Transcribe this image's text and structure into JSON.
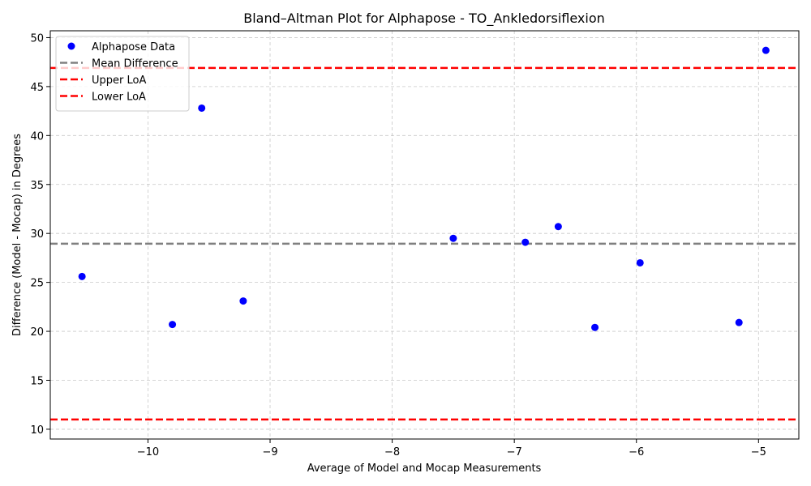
{
  "chart_data": {
    "type": "scatter",
    "title": "Bland–Altman Plot for Alphapose - TO_Ankledorsiflexion",
    "xlabel": "Average of Model and Mocap Measurements",
    "ylabel": "Difference (Model - Mocap) in Degrees",
    "xlim": [
      -10.8,
      -4.67
    ],
    "ylim": [
      9.0,
      50.7
    ],
    "xticks": [
      -10,
      -9,
      -8,
      -7,
      -6,
      -5
    ],
    "xtick_labels": [
      "−10",
      "−9",
      "−8",
      "−7",
      "−6",
      "−5"
    ],
    "yticks": [
      10,
      15,
      20,
      25,
      30,
      35,
      40,
      45,
      50
    ],
    "ytick_labels": [
      "10",
      "15",
      "20",
      "25",
      "30",
      "35",
      "40",
      "45",
      "50"
    ],
    "grid": true,
    "legend_position": "top-left",
    "series": [
      {
        "name": "Alphapose Data",
        "color": "#0000ff",
        "points": [
          {
            "x": -10.54,
            "y": 25.6
          },
          {
            "x": -9.8,
            "y": 20.7
          },
          {
            "x": -9.56,
            "y": 42.8
          },
          {
            "x": -9.22,
            "y": 23.1
          },
          {
            "x": -7.5,
            "y": 29.5
          },
          {
            "x": -6.91,
            "y": 29.1
          },
          {
            "x": -6.64,
            "y": 30.7
          },
          {
            "x": -6.34,
            "y": 20.4
          },
          {
            "x": -5.97,
            "y": 27.0
          },
          {
            "x": -5.16,
            "y": 20.9
          },
          {
            "x": -4.94,
            "y": 48.7
          }
        ]
      }
    ],
    "reference_lines": [
      {
        "name": "Mean Difference",
        "y": 28.95,
        "color": "#808080"
      },
      {
        "name": "Upper LoA",
        "y": 46.9,
        "color": "#ff0000"
      },
      {
        "name": "Lower LoA",
        "y": 11.0,
        "color": "#ff0000"
      }
    ]
  }
}
